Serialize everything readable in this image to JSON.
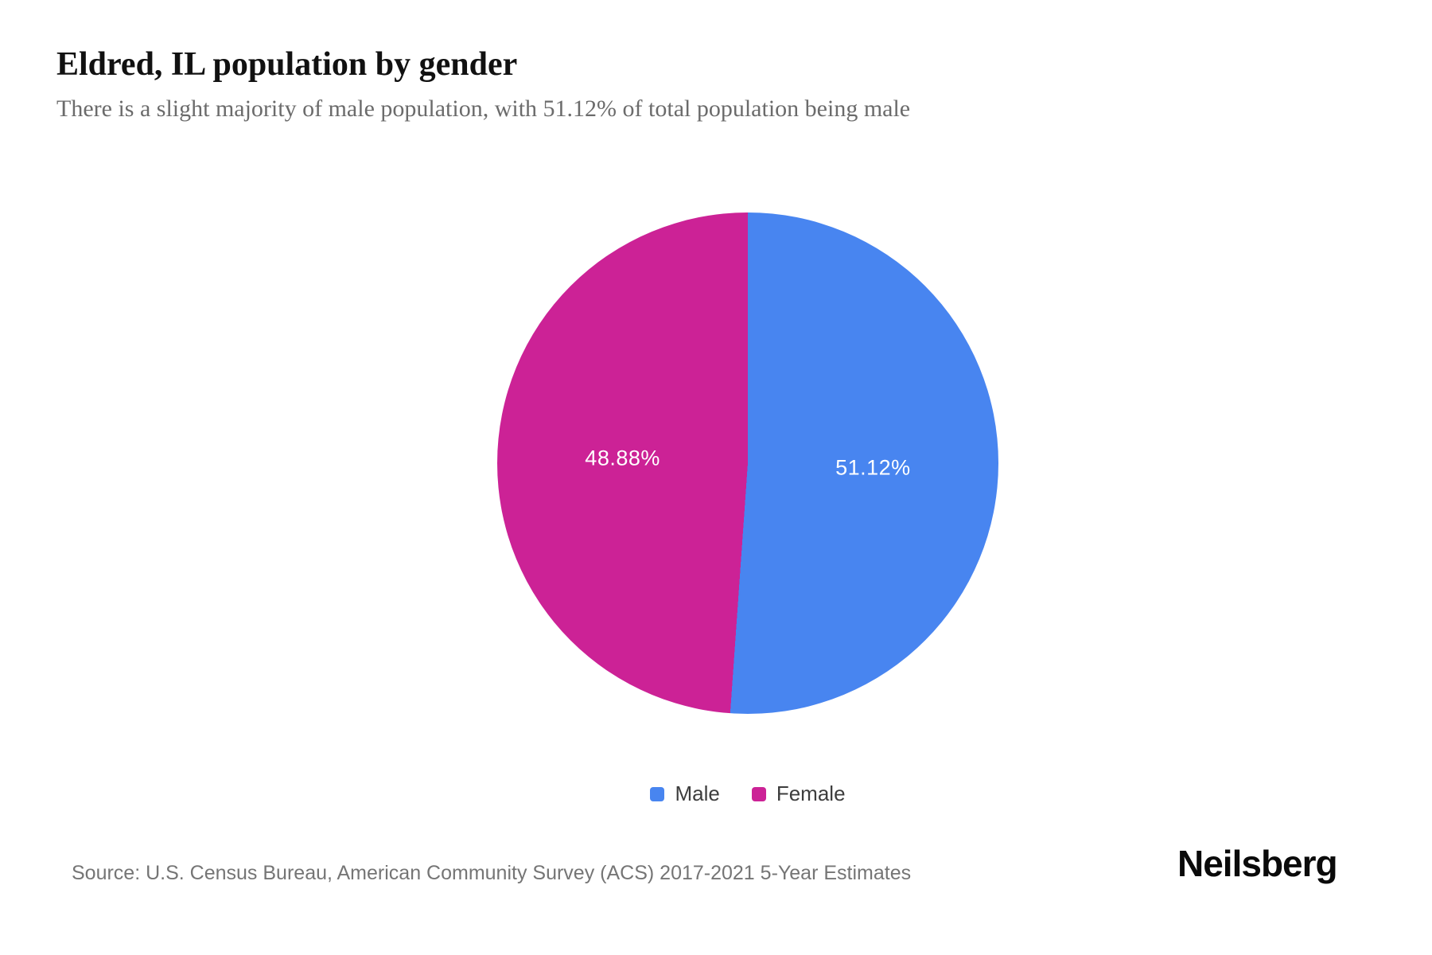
{
  "header": {
    "title": "Eldred, IL population by gender",
    "subtitle": "There is a slight majority of male population, with 51.12% of total population being male"
  },
  "chart_data": {
    "type": "pie",
    "title": "Eldred, IL population by gender",
    "series": [
      {
        "name": "Male",
        "value": 51.12,
        "label": "51.12%",
        "color": "#4885F0"
      },
      {
        "name": "Female",
        "value": 48.88,
        "label": "48.88%",
        "color": "#CC2296"
      }
    ],
    "start_angle_deg": 0,
    "direction": "clockwise",
    "slice_label_color": "#ffffff",
    "legend_position": "bottom"
  },
  "footer": {
    "source": "Source: U.S. Census Bureau, American Community Survey (ACS) 2017-2021 5-Year Estimates",
    "brand": "Neilsberg"
  }
}
